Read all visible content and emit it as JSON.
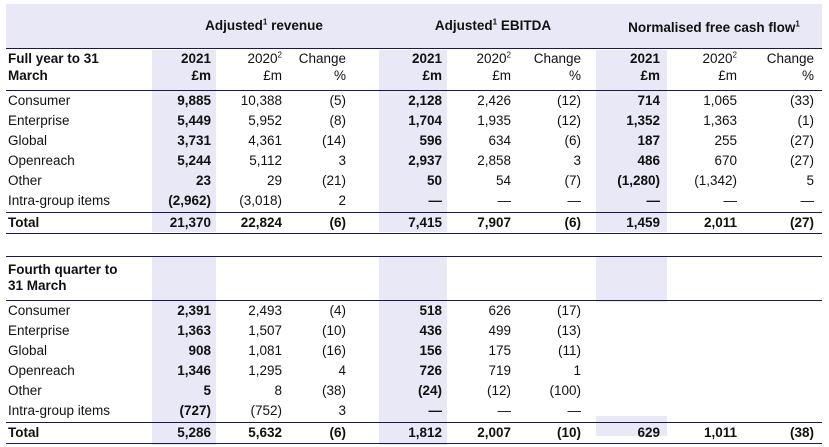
{
  "groups": {
    "revenue": {
      "title": "Adjusted",
      "sup": "1",
      "rest": " revenue"
    },
    "ebitda": {
      "title": "Adjusted",
      "sup": "1",
      "rest": " EBITDA"
    },
    "fcf": {
      "title": "Normalised free cash flow",
      "sup": "1"
    }
  },
  "header": {
    "period_label_1": "Full year to 31",
    "period_label_2": "March",
    "year_current": "2021",
    "year_prior": "2020",
    "year_prior_sup": "2",
    "change": "Change",
    "unit": "£m",
    "pct": "%"
  },
  "full_year": {
    "rows": [
      {
        "label": "Consumer",
        "values": [
          "9,885",
          "10,388",
          "(5)",
          "2,128",
          "2,426",
          "(12)",
          "714",
          "1,065",
          "(33)"
        ]
      },
      {
        "label": "Enterprise",
        "values": [
          "5,449",
          "5,952",
          "(8)",
          "1,704",
          "1,935",
          "(12)",
          "1,352",
          "1,363",
          "(1)"
        ]
      },
      {
        "label": "Global",
        "values": [
          "3,731",
          "4,361",
          "(14)",
          "596",
          "634",
          "(6)",
          "187",
          "255",
          "(27)"
        ]
      },
      {
        "label": "Openreach",
        "values": [
          "5,244",
          "5,112",
          "3",
          "2,937",
          "2,858",
          "3",
          "486",
          "670",
          "(27)"
        ]
      },
      {
        "label": "Other",
        "values": [
          "23",
          "29",
          "(21)",
          "50",
          "54",
          "(7)",
          "(1,280)",
          "(1,342)",
          "5"
        ]
      },
      {
        "label": "Intra-group items",
        "values": [
          "(2,962)",
          "(3,018)",
          "2",
          "—",
          "—",
          "—",
          "—",
          "—",
          "—"
        ]
      }
    ],
    "total": {
      "label": "Total",
      "values": [
        "21,370",
        "22,824",
        "(6)",
        "7,415",
        "7,907",
        "(6)",
        "1,459",
        "2,011",
        "(27)"
      ]
    }
  },
  "quarter": {
    "label_1": "Fourth quarter to",
    "label_2": "31 March",
    "rows": [
      {
        "label": "Consumer",
        "values": [
          "2,391",
          "2,493",
          "(4)",
          "518",
          "626",
          "(17)",
          "",
          "",
          ""
        ]
      },
      {
        "label": "Enterprise",
        "values": [
          "1,363",
          "1,507",
          "(10)",
          "436",
          "499",
          "(13)",
          "",
          "",
          ""
        ]
      },
      {
        "label": "Global",
        "values": [
          "908",
          "1,081",
          "(16)",
          "156",
          "175",
          "(11)",
          "",
          "",
          ""
        ]
      },
      {
        "label": "Openreach",
        "values": [
          "1,346",
          "1,295",
          "4",
          "726",
          "719",
          "1",
          "",
          "",
          ""
        ]
      },
      {
        "label": "Other",
        "values": [
          "5",
          "8",
          "(38)",
          "(24)",
          "(12)",
          "(100)",
          "",
          "",
          ""
        ]
      },
      {
        "label": "Intra-group items",
        "values": [
          "(727)",
          "(752)",
          "3",
          "—",
          "—",
          "—",
          "",
          "",
          ""
        ]
      }
    ],
    "total": {
      "label": "Total",
      "values": [
        "5,286",
        "5,632",
        "(6)",
        "1,812",
        "2,007",
        "(10)",
        "629",
        "1,011",
        "(38)"
      ]
    }
  },
  "colors": {
    "shade": "#e8e8f6",
    "rule": "#1a1a4a"
  }
}
